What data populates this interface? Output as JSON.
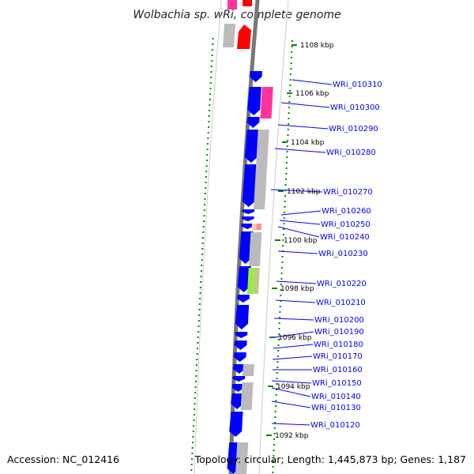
{
  "title": "Wolbachia sp. wRi, complete genome",
  "accession": "Accession: NC_012416",
  "topology": "Topology: circular; Length: 1,445,873 bp; Genes: 1,187",
  "colors": {
    "backbone": "#777777",
    "cds": "#0000ff",
    "pink": "#ff3399",
    "red": "#ff0000",
    "gray": "#bbbbbb",
    "tick": "#008800",
    "label": "#0000ff",
    "lime": "#99ee33",
    "peach": "#ffcc99"
  },
  "scale_labels": [
    "1108 kbp",
    "1106 kbp",
    "1104 kbp",
    "1102 kbp",
    "1100 kbp",
    "1098 kbp",
    "1096 kbp",
    "1094 kbp",
    "1092 kbp"
  ],
  "gene_labels": [
    "WRi_010310",
    "WRi_010300",
    "WRi_010290",
    "WRi_010280",
    "WRi_010270",
    "WRi_010260",
    "WRi_010250",
    "WRi_010240",
    "WRi_010230",
    "WRi_010220",
    "WRi_010210",
    "WRi_010200",
    "WRi_010190",
    "WRi_010180",
    "WRi_010170",
    "WRi_010160",
    "WRi_010150",
    "WRi_010140",
    "WRi_010130",
    "WRi_010120"
  ]
}
